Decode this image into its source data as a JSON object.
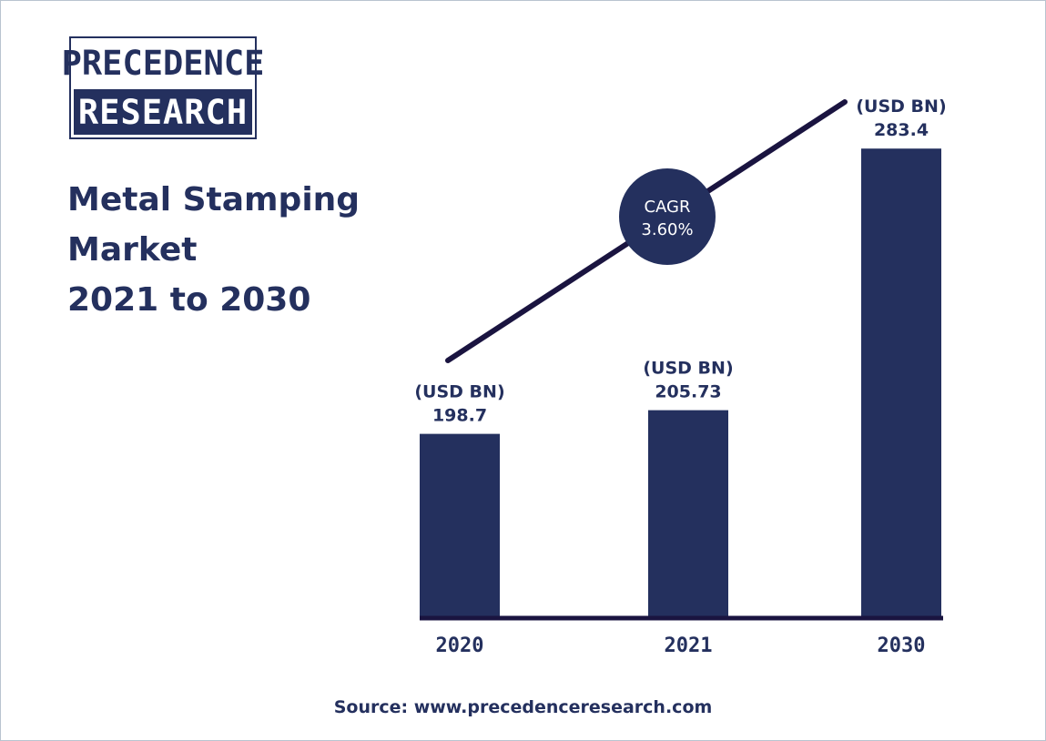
{
  "logo": {
    "line1": "PRECEDENCE",
    "line2": "RESEARCH"
  },
  "title": {
    "line1": "Metal Stamping",
    "line2": "Market",
    "line3": "2021 to 2030"
  },
  "source": "Source: www.precedenceresearch.com",
  "cagr": {
    "label": "CAGR",
    "value": "3.60%"
  },
  "colors": {
    "bar": "#24305e",
    "text": "#24305e",
    "line": "#1a1440"
  },
  "chart_data": {
    "type": "bar",
    "categories": [
      "2020",
      "2021",
      "2030"
    ],
    "values": [
      198.7,
      205.73,
      283.4
    ],
    "value_labels": [
      "198.7",
      "205.73",
      "283.4"
    ],
    "unit_label": "(USD BN)",
    "title": "Metal Stamping Market 2021 to 2030",
    "xlabel": "",
    "ylabel": "",
    "grid": false,
    "annotations": [
      "CAGR 3.60%"
    ]
  }
}
